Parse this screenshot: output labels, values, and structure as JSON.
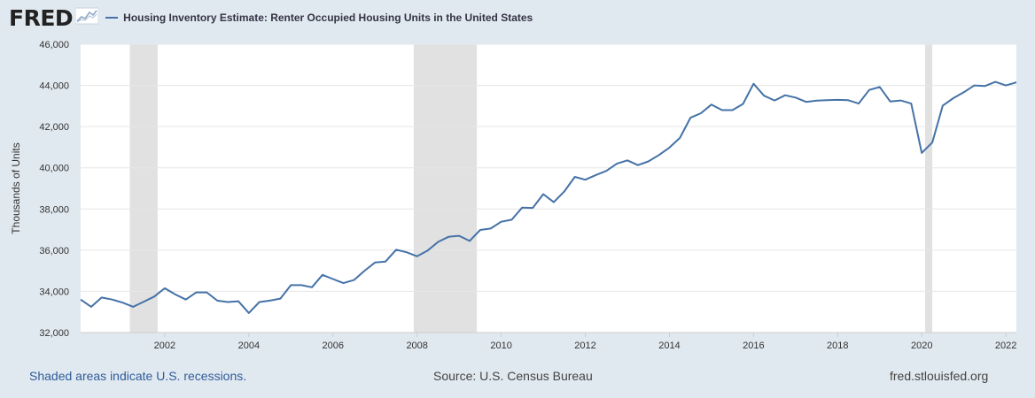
{
  "header": {
    "logo_text": "FRED",
    "logo_icon": "chart-sparkline-icon",
    "series_title": "Housing Inventory Estimate: Renter Occupied Housing Units in the United States"
  },
  "footer": {
    "recessions_note": "Shaded areas indicate U.S. recessions.",
    "source": "Source: U.S. Census Bureau",
    "site": "fred.stlouisfed.org"
  },
  "colors": {
    "page_background": "#e1e9f0",
    "plot_background": "#ffffff",
    "series": "#4572a7",
    "recession_shade": "#e1e1e1",
    "note_text": "#2f5c99"
  },
  "chart_data": {
    "type": "line",
    "title": "Housing Inventory Estimate: Renter Occupied Housing Units in the United States",
    "xlabel": "",
    "ylabel": "Thousands of Units",
    "xlim": [
      2000.0,
      2022.25
    ],
    "ylim": [
      32000,
      46000
    ],
    "x_ticks": [
      2002,
      2004,
      2006,
      2008,
      2010,
      2012,
      2014,
      2016,
      2018,
      2020,
      2022
    ],
    "y_ticks": [
      32000,
      34000,
      36000,
      38000,
      40000,
      42000,
      44000,
      46000
    ],
    "y_tick_labels": [
      "32,000",
      "34,000",
      "36,000",
      "38,000",
      "40,000",
      "42,000",
      "44,000",
      "46,000"
    ],
    "grid": "horizontal",
    "frequency": "quarterly",
    "recessions": [
      [
        2001.17,
        2001.83
      ],
      [
        2007.92,
        2009.42
      ],
      [
        2020.08,
        2020.25
      ]
    ],
    "series": [
      {
        "name": "Housing Inventory Estimate: Renter Occupied Housing Units in the United States",
        "x": [
          2000.0,
          2000.25,
          2000.5,
          2000.75,
          2001.0,
          2001.25,
          2001.5,
          2001.75,
          2002.0,
          2002.25,
          2002.5,
          2002.75,
          2003.0,
          2003.25,
          2003.5,
          2003.75,
          2004.0,
          2004.25,
          2004.5,
          2004.75,
          2005.0,
          2005.25,
          2005.5,
          2005.75,
          2006.0,
          2006.25,
          2006.5,
          2006.75,
          2007.0,
          2007.25,
          2007.5,
          2007.75,
          2008.0,
          2008.25,
          2008.5,
          2008.75,
          2009.0,
          2009.25,
          2009.5,
          2009.75,
          2010.0,
          2010.25,
          2010.5,
          2010.75,
          2011.0,
          2011.25,
          2011.5,
          2011.75,
          2012.0,
          2012.25,
          2012.5,
          2012.75,
          2013.0,
          2013.25,
          2013.5,
          2013.75,
          2014.0,
          2014.25,
          2014.5,
          2014.75,
          2015.0,
          2015.25,
          2015.5,
          2015.75,
          2016.0,
          2016.25,
          2016.5,
          2016.75,
          2017.0,
          2017.25,
          2017.5,
          2017.75,
          2018.0,
          2018.25,
          2018.5,
          2018.75,
          2019.0,
          2019.25,
          2019.5,
          2019.75,
          2020.0,
          2020.25,
          2020.5,
          2020.75,
          2021.0,
          2021.25,
          2021.5,
          2021.75,
          2022.0,
          2022.25
        ],
        "values": [
          33600,
          33250,
          33700,
          33600,
          33450,
          33250,
          33500,
          33750,
          34150,
          33850,
          33600,
          33950,
          33950,
          33550,
          33480,
          33520,
          32950,
          33480,
          33550,
          33650,
          34300,
          34300,
          34200,
          34800,
          34600,
          34400,
          34550,
          35000,
          35400,
          35450,
          36020,
          35900,
          35700,
          35980,
          36400,
          36650,
          36700,
          36450,
          36980,
          37050,
          37380,
          37480,
          38070,
          38050,
          38720,
          38330,
          38850,
          39560,
          39420,
          39650,
          39850,
          40200,
          40360,
          40130,
          40310,
          40620,
          40980,
          41450,
          42430,
          42650,
          43070,
          42800,
          42800,
          43100,
          44080,
          43500,
          43270,
          43520,
          43410,
          43200,
          43260,
          43280,
          43300,
          43280,
          43120,
          43780,
          43920,
          43220,
          43270,
          43120,
          40720,
          41230,
          43020,
          43380,
          43670,
          44000,
          43970,
          44170,
          44000,
          44150
        ]
      }
    ]
  }
}
